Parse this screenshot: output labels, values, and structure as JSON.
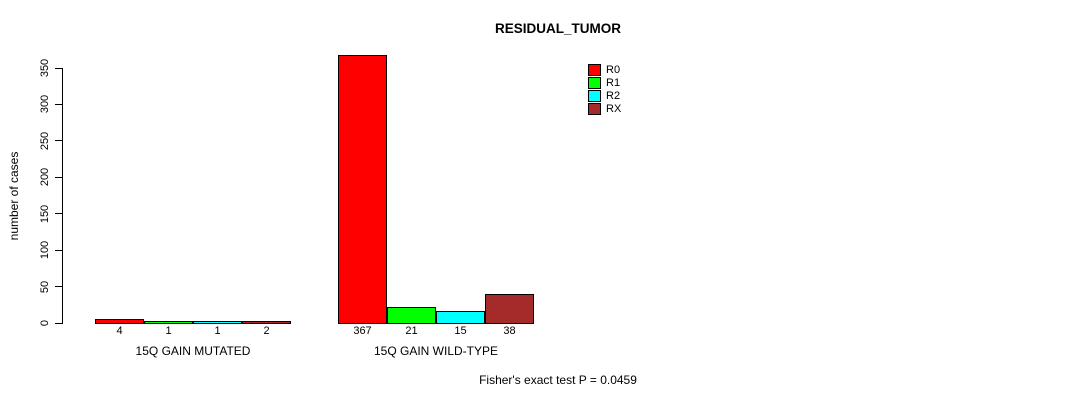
{
  "chart_data": {
    "type": "bar",
    "title": "RESIDUAL_TUMOR",
    "ylabel": "number of cases",
    "xlabel": "",
    "ylim": [
      0,
      350
    ],
    "yticks": [
      0,
      50,
      100,
      150,
      200,
      250,
      300,
      350
    ],
    "grid": false,
    "legend_position": "top-right",
    "background": "#FFFFFF",
    "axis_color": "#000000",
    "categories": [
      "15Q GAIN MUTATED",
      "15Q GAIN WILD-TYPE"
    ],
    "series": [
      {
        "name": "R0",
        "color": "#FF0000",
        "values": [
          4,
          367
        ]
      },
      {
        "name": "R1",
        "color": "#00FF00",
        "values": [
          1,
          21
        ]
      },
      {
        "name": "R2",
        "color": "#00FFFF",
        "values": [
          1,
          15
        ]
      },
      {
        "name": "RX",
        "color": "#A52A2A",
        "values": [
          2,
          38
        ]
      }
    ],
    "bar_value_labels": [
      [
        "4",
        "1",
        "1",
        "2"
      ],
      [
        "367",
        "21",
        "15",
        "38"
      ]
    ],
    "footnote": "Fisher's exact test P = 0.0459"
  }
}
